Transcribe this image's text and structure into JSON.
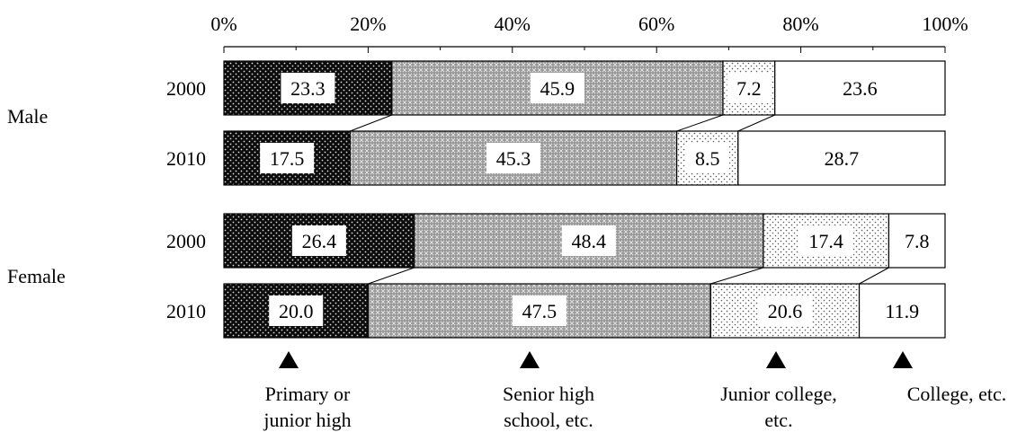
{
  "chart_data": {
    "type": "bar",
    "orientation": "horizontal",
    "stacked": "100%",
    "x_ticks": [
      "0%",
      "20%",
      "40%",
      "60%",
      "80%",
      "100%"
    ],
    "xlim": [
      0,
      100
    ],
    "groups": [
      {
        "name": "Male",
        "rows": [
          {
            "year": "2000",
            "values": [
              23.3,
              45.9,
              7.2,
              23.6
            ],
            "labels": [
              "23.3",
              "45.9",
              "7.2",
              "23.6"
            ]
          },
          {
            "year": "2010",
            "values": [
              17.5,
              45.3,
              8.5,
              28.7
            ],
            "labels": [
              "17.5",
              "45.3",
              "8.5",
              "28.7"
            ]
          }
        ]
      },
      {
        "name": "Female",
        "rows": [
          {
            "year": "2000",
            "values": [
              26.4,
              48.4,
              17.4,
              7.8
            ],
            "labels": [
              "26.4",
              "48.4",
              "17.4",
              "7.8"
            ]
          },
          {
            "year": "2010",
            "values": [
              20.0,
              47.5,
              20.6,
              11.9
            ],
            "labels": [
              "20.0",
              "47.5",
              "20.6",
              "11.9"
            ]
          }
        ]
      }
    ],
    "series": [
      {
        "name": "Primary or junior high",
        "label_lines": [
          "Primary or",
          "junior high"
        ],
        "pattern": "black-dots"
      },
      {
        "name": "Senior high school, etc.",
        "label_lines": [
          "Senior high",
          "school, etc."
        ],
        "pattern": "gray-crosshatch"
      },
      {
        "name": "Junior college, etc.",
        "label_lines": [
          "Junior college,",
          "etc."
        ],
        "pattern": "light-dots"
      },
      {
        "name": "College, etc.",
        "label_lines": [
          "College, etc."
        ],
        "pattern": "white"
      }
    ],
    "legend_marker": "triangle-up",
    "grid": false
  }
}
